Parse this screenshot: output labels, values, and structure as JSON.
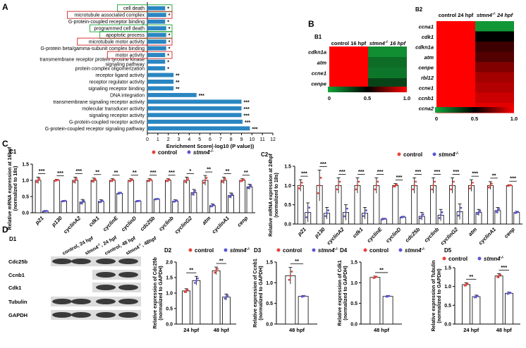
{
  "chart_data": [
    {
      "id": "A",
      "panel_label": "A",
      "type": "bar",
      "orientation": "horizontal",
      "categories": [
        "cell death",
        "microtubule associated complex",
        "G-protein-coupled receptor binding",
        "programmed cell death",
        "apoptotic process",
        "microtubule motor activity",
        "G-protein beta/gamma-subunit complex binding",
        "motor activity",
        "transmembrane receptor protein tyrosine kinase signaling pathway",
        "protein complex oligomerization",
        "receptor ligand activity",
        "receptor regulator activity",
        "signaling receptor binding",
        "DNA integration",
        "transmembrane signaling receptor activity",
        "molecular transducer activity",
        "signaling receptor activity",
        "G-protein-coupled receptor activity",
        "G-protein-coupled receptor signaling pathway"
      ],
      "values": [
        1.7,
        1.8,
        1.7,
        1.8,
        1.8,
        1.8,
        1.8,
        1.7,
        1.7,
        1.7,
        2.5,
        2.5,
        2.5,
        4.7,
        9.0,
        9.0,
        9.0,
        9.1,
        9.8
      ],
      "significance": [
        "*",
        "*",
        "*",
        "*",
        "*",
        "*",
        "*",
        "*",
        "*",
        "*",
        "**",
        "**",
        "**",
        "***",
        "***",
        "***",
        "***",
        "***",
        "***"
      ],
      "boxed_green": [
        "cell death",
        "programmed cell death",
        "apoptotic process"
      ],
      "boxed_red": [
        "microtubule associated complex",
        "microtubule motor activity",
        "motor activity"
      ],
      "xlabel": "Enrichment Score(-log10 (P value))",
      "xlim": [
        0,
        12
      ],
      "ticks": [
        "0",
        "1",
        "2",
        "3",
        "4",
        "5",
        "6",
        "7",
        "8",
        "9",
        "10",
        "11",
        "12"
      ],
      "colors": {
        "bar": "#2a86c2",
        "box_green": "#2eab4b",
        "box_red": "#d43a3a"
      }
    },
    {
      "id": "B1",
      "panel_label": "B1",
      "type": "heatmap",
      "columns": [
        "control 16 hpf",
        "stmn4-/- 16 hpf"
      ],
      "rows": [
        "cdkn1a",
        "atm",
        "ccne1",
        "cenpe"
      ],
      "values": [
        [
          1.0,
          0.08
        ],
        [
          1.0,
          0.18
        ],
        [
          1.0,
          0.15
        ],
        [
          1.0,
          0.3
        ]
      ],
      "scale_ticks": [
        "0",
        "0.5",
        "1.0"
      ],
      "colors": {
        "low": "#14a83c",
        "mid": "#000000",
        "high": "#ff0000"
      }
    },
    {
      "id": "B2",
      "panel_label": "B2",
      "type": "heatmap",
      "columns": [
        "control 24 hpf",
        "stmn4-/- 24 hpf"
      ],
      "rows": [
        "ccna1",
        "cdk1",
        "cdkn1a",
        "atm",
        "cenpe",
        "rbl12",
        "ccne1",
        "ccnb1",
        "ccna2"
      ],
      "values": [
        [
          1.0,
          0.05
        ],
        [
          1.0,
          0.5
        ],
        [
          1.0,
          0.62
        ],
        [
          1.0,
          0.66
        ],
        [
          1.0,
          0.75
        ],
        [
          1.0,
          0.82
        ],
        [
          1.0,
          0.85
        ],
        [
          1.0,
          0.9
        ],
        [
          1.0,
          0.95
        ]
      ],
      "scale_ticks": [
        "0",
        "0.5",
        "1.0"
      ],
      "colors": {
        "low": "#14a83c",
        "mid": "#000000",
        "high": "#ff0000"
      }
    },
    {
      "id": "C1",
      "panel_label": "C1",
      "type": "bar",
      "categories": [
        "p21",
        "p130",
        "cyclinA2",
        "cdk1",
        "cyclinE",
        "cyclinD",
        "cdc25b",
        "cyclinb",
        "cyclinG2",
        "atm",
        "cyclinA1",
        "cenp"
      ],
      "series": [
        {
          "name": "control",
          "values": [
            1.0,
            1.0,
            1.0,
            1.0,
            1.0,
            1.0,
            1.0,
            1.0,
            1.0,
            1.0,
            1.0,
            1.0
          ],
          "errors": [
            0.1,
            0.03,
            0.1,
            0.07,
            0.05,
            0.05,
            0.05,
            0.05,
            0.1,
            0.15,
            0.1,
            0.05
          ]
        },
        {
          "name": "stmn4-/-",
          "values": [
            0.05,
            0.36,
            0.33,
            0.35,
            0.6,
            0.36,
            0.42,
            0.36,
            0.62,
            0.22,
            0.53,
            0.8
          ],
          "errors": [
            0.02,
            0.02,
            0.08,
            0.05,
            0.03,
            0.02,
            0.02,
            0.04,
            0.1,
            0.05,
            0.08,
            0.08
          ]
        }
      ],
      "significance": [
        "***",
        "***",
        "***",
        "**",
        "**",
        "**",
        "***",
        "***",
        "*",
        "**",
        "**",
        "**"
      ],
      "ylabel": "Relative mRNA expression at 16hpf (normalized to 18s)",
      "ylim": [
        0,
        1.5
      ],
      "yticks": [
        "0.0",
        "0.5",
        "1.0",
        "1.5"
      ],
      "colors": {
        "control": "#e8423c",
        "stmn4": "#5b55d6"
      }
    },
    {
      "id": "C2",
      "panel_label": "C2",
      "type": "bar",
      "categories": [
        "p21",
        "p130",
        "cyclinA2",
        "cdk1",
        "cyclinE",
        "cyclinD",
        "cdc25b",
        "cyclinb",
        "cyclinG2",
        "atm",
        "cyclinA1",
        "cenp"
      ],
      "series": [
        {
          "name": "control",
          "values": [
            1.0,
            1.0,
            1.0,
            1.0,
            1.0,
            1.0,
            1.0,
            1.0,
            1.0,
            1.0,
            1.0,
            1.0
          ],
          "errors": [
            0.15,
            0.4,
            0.2,
            0.2,
            0.2,
            0.05,
            0.2,
            0.2,
            0.2,
            0.15,
            0.1,
            0.02
          ]
        },
        {
          "name": "stmn4-/-",
          "values": [
            0.3,
            0.28,
            0.3,
            0.28,
            0.13,
            0.18,
            0.2,
            0.23,
            0.32,
            0.3,
            0.35,
            0.3
          ],
          "errors": [
            0.25,
            0.15,
            0.2,
            0.15,
            0.02,
            0.02,
            0.1,
            0.15,
            0.2,
            0.08,
            0.08,
            0.03
          ]
        }
      ],
      "significance": [
        "***",
        "***",
        "***",
        "***",
        "***",
        "***",
        "***",
        "***",
        "***",
        "***",
        "**",
        "***"
      ],
      "ylabel": "Relative mRNA expression at 24hpf (normalized to 18s)",
      "ylim": [
        0,
        1.5
      ],
      "yticks": [
        "0.0",
        "0.5",
        "1.0",
        "1.5"
      ],
      "colors": {
        "control": "#e8423c",
        "stmn4": "#5b55d6"
      }
    },
    {
      "id": "D1",
      "panel_label": "D1",
      "type": "table",
      "columns": [
        "control, 24 hpf",
        "stmn4-/-, 24 hpf",
        "control, 48 hpf",
        "stmn4-/-, 48hpf"
      ],
      "rows": [
        "Cdc25b",
        "Ccnb1",
        "Cdk1",
        "Tubulin",
        "GAPDH"
      ]
    },
    {
      "id": "D2",
      "panel_label": "D2",
      "type": "bar",
      "categories": [
        "24 hpf",
        "48 hpf"
      ],
      "series": [
        {
          "name": "control",
          "values": [
            1.07,
            1.72
          ],
          "errors": [
            0.07,
            0.12
          ]
        },
        {
          "name": "stmn4-/-",
          "values": [
            1.4,
            0.87
          ],
          "errors": [
            0.14,
            0.1
          ]
        }
      ],
      "significance": [
        "**",
        "**"
      ],
      "ylabel": "Relative expression of Cdc25b (normalized to GAPDH)",
      "ylim": [
        0,
        2.0
      ],
      "yticks": [
        "0.0",
        "0.5",
        "1.0",
        "1.5",
        "2.0"
      ],
      "colors": {
        "control": "#e8423c",
        "stmn4": "#5b55d6"
      }
    },
    {
      "id": "D3",
      "panel_label": "D3",
      "type": "bar",
      "categories": [
        "48 hpf"
      ],
      "series": [
        {
          "name": "control",
          "values": [
            1.17
          ],
          "errors": [
            0.2
          ]
        },
        {
          "name": "stmn4-/-",
          "values": [
            0.67
          ],
          "errors": [
            0.02
          ]
        }
      ],
      "significance": [
        "**"
      ],
      "ylabel": "Relative expression of Ccnb1 (normalized to GAPDH)",
      "ylim": [
        0,
        1.5
      ],
      "yticks": [
        "0.0",
        "0.5",
        "1.0",
        "1.5"
      ],
      "colors": {
        "control": "#e8423c",
        "stmn4": "#5b55d6"
      }
    },
    {
      "id": "D4",
      "panel_label": "D4",
      "type": "bar",
      "categories": [
        "48 hpf"
      ],
      "series": [
        {
          "name": "control",
          "values": [
            1.13
          ],
          "errors": [
            0.03
          ]
        },
        {
          "name": "stmn4-/-",
          "values": [
            0.67
          ],
          "errors": [
            0.02
          ]
        }
      ],
      "significance": [
        "**"
      ],
      "ylabel": "Relative expression of Cdk1 (normalized to GAPDH)",
      "ylim": [
        0,
        1.5
      ],
      "yticks": [
        "0.0",
        "0.5",
        "1.0",
        "1.5"
      ],
      "colors": {
        "control": "#e8423c",
        "stmn4": "#5b55d6"
      }
    },
    {
      "id": "D5",
      "panel_label": "D5",
      "type": "bar",
      "categories": [
        "24 hpf",
        "48 hpf"
      ],
      "series": [
        {
          "name": "control",
          "values": [
            1.05,
            1.28
          ],
          "errors": [
            0.05,
            0.06
          ]
        },
        {
          "name": "stmn4-/-",
          "values": [
            0.73,
            0.82
          ],
          "errors": [
            0.04,
            0.03
          ]
        }
      ],
      "significance": [
        "**",
        "***"
      ],
      "ylabel": "Relative expression of Tubulin (normalized to GAPDH)",
      "ylim": [
        0,
        1.5
      ],
      "yticks": [
        "0.0",
        "0.5",
        "1.0",
        "1.5"
      ],
      "colors": {
        "control": "#e8423c",
        "stmn4": "#5b55d6"
      }
    }
  ],
  "legend": {
    "control": "control",
    "stmn4": "stmn4-/-"
  }
}
